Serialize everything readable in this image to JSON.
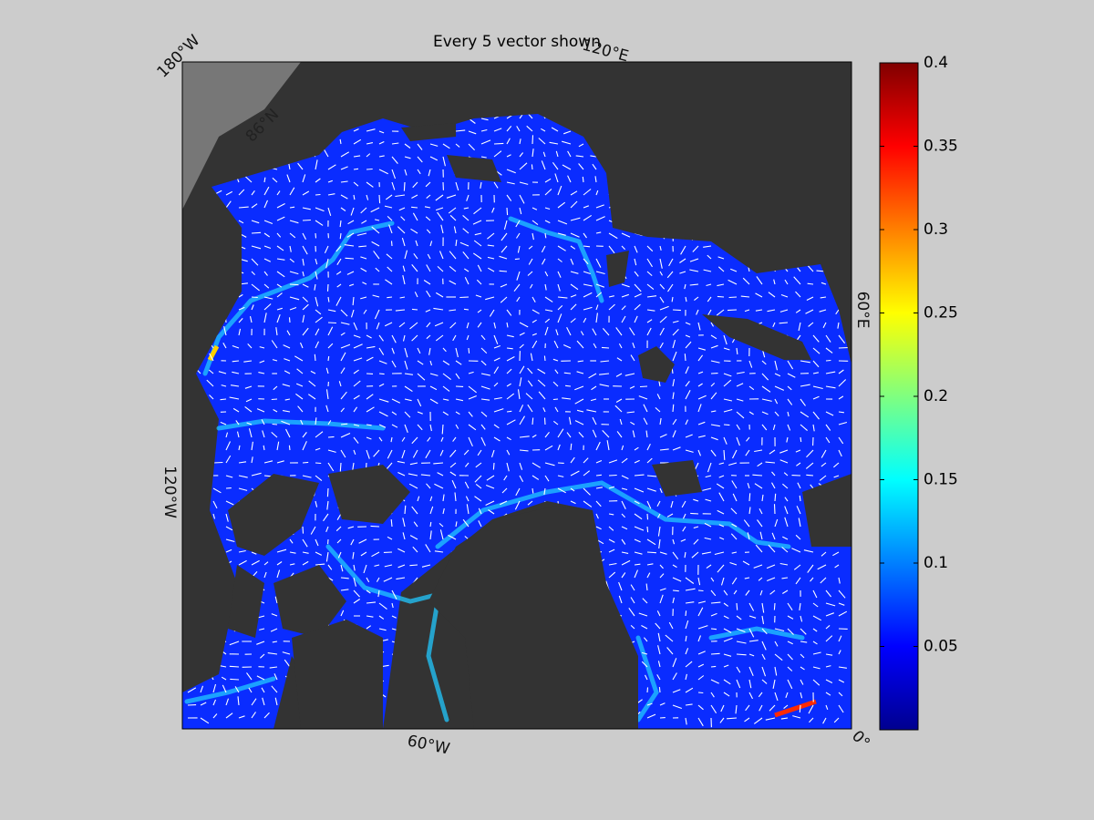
{
  "title": "Every 5 vector shown",
  "map_labels": [
    "180°W",
    "120°E",
    "60°E",
    "0°",
    "60°W",
    "120°W",
    "86°N"
  ],
  "colorbar": {
    "colormap": "jet",
    "clim": [
      0,
      0.4
    ],
    "ticks": [
      0.05,
      0.1,
      0.15,
      0.2,
      0.25,
      0.3,
      0.35,
      0.4
    ]
  }
}
